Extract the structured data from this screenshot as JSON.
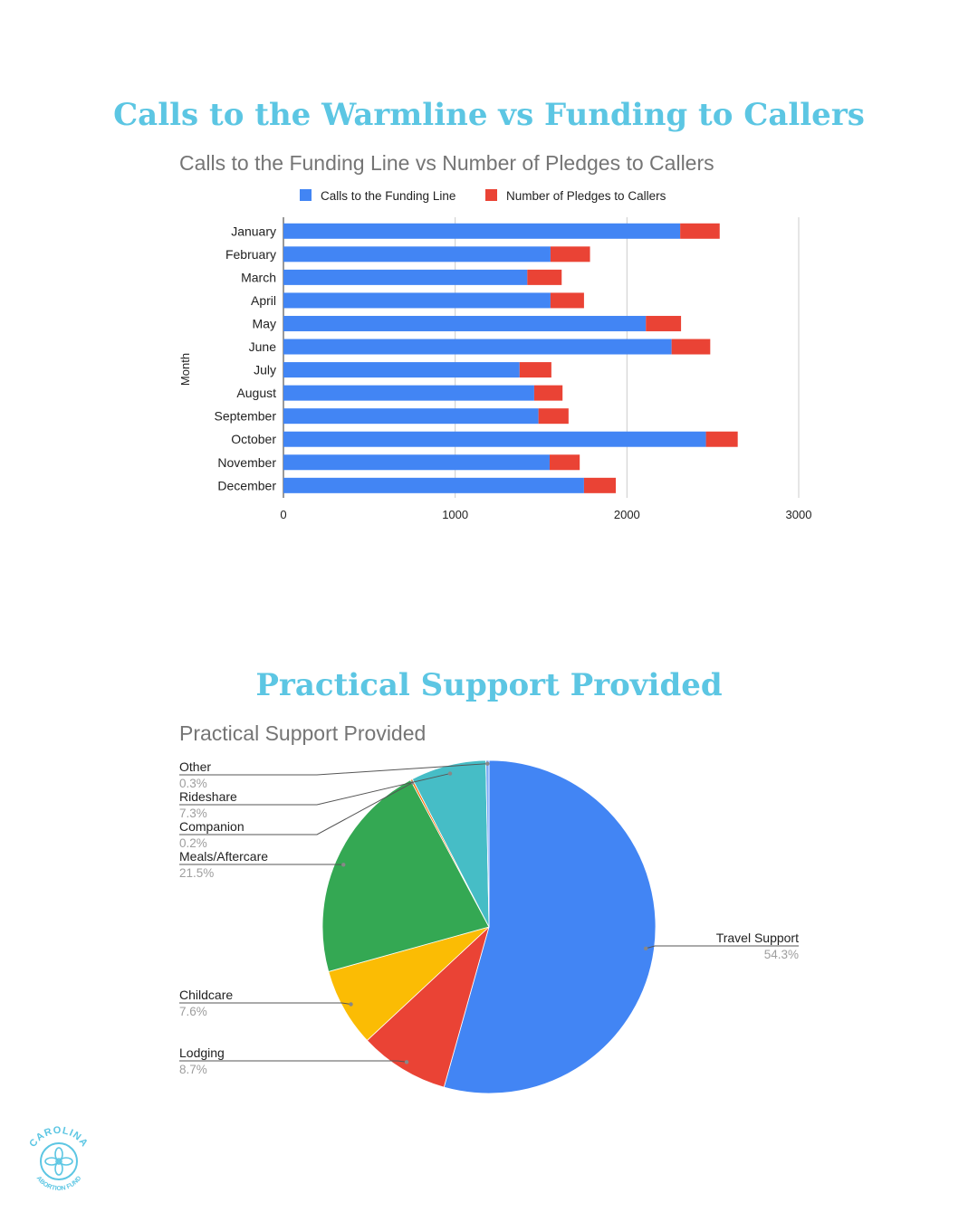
{
  "page": {
    "title_top": "Calls to the Warmline vs Funding to Callers",
    "title_bottom": "Practical Support Provided",
    "logo": {
      "name": "Carolina Abortion Fund logo",
      "text_top": "CAROLINA",
      "text_bottom": "ABORTION FUND",
      "color": "#5cc6e3"
    }
  },
  "chart_data": [
    {
      "type": "bar",
      "orientation": "horizontal",
      "stacked": true,
      "title": "Calls to the Funding Line vs Number of Pledges to Callers",
      "ylabel": "Month",
      "xlabel": "",
      "categories": [
        "January",
        "February",
        "March",
        "April",
        "May",
        "June",
        "July",
        "August",
        "September",
        "October",
        "November",
        "December"
      ],
      "series": [
        {
          "name": "Calls to the Funding Line",
          "color": "#4285f4",
          "values": [
            2310,
            1555,
            1420,
            1555,
            2110,
            2260,
            1375,
            1460,
            1485,
            2460,
            1550,
            1750
          ]
        },
        {
          "name": "Number of Pledges to Callers",
          "color": "#ea4335",
          "values": [
            230,
            230,
            200,
            195,
            205,
            225,
            185,
            165,
            175,
            185,
            175,
            185
          ]
        }
      ],
      "xlim": [
        0,
        3000
      ],
      "xticks": [
        "0",
        "1000",
        "2000",
        "3000"
      ],
      "grid": true,
      "legend": "top"
    },
    {
      "type": "pie",
      "title": "Practical Support Provided",
      "slices": [
        {
          "label": "Travel Support",
          "value": 54.3,
          "pct": "54.3%",
          "color": "#4285f4"
        },
        {
          "label": "Lodging",
          "value": 8.7,
          "pct": "8.7%",
          "color": "#ea4335"
        },
        {
          "label": "Childcare",
          "value": 7.6,
          "pct": "7.6%",
          "color": "#fbbc04"
        },
        {
          "label": "Meals/Aftercare",
          "value": 21.5,
          "pct": "21.5%",
          "color": "#34a853"
        },
        {
          "label": "Companion",
          "value": 0.2,
          "pct": "0.2%",
          "color": "#ff6d01"
        },
        {
          "label": "Rideshare",
          "value": 7.3,
          "pct": "7.3%",
          "color": "#46bdc6"
        },
        {
          "label": "Other",
          "value": 0.3,
          "pct": "0.3%",
          "color": "#7baaf7"
        }
      ],
      "legend": "labels"
    }
  ]
}
